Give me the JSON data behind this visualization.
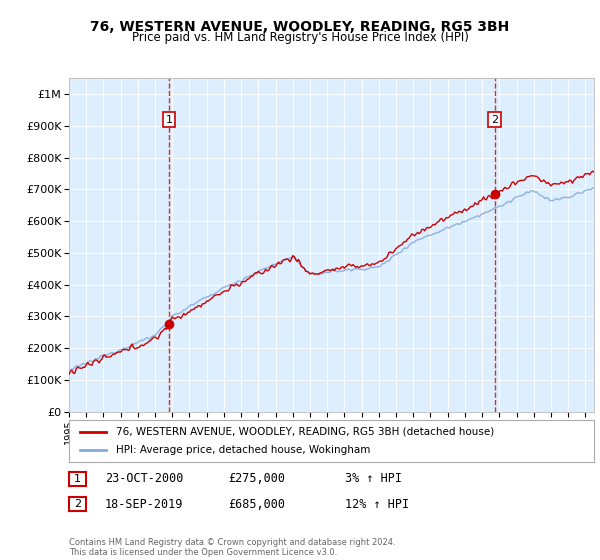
{
  "title": "76, WESTERN AVENUE, WOODLEY, READING, RG5 3BH",
  "subtitle": "Price paid vs. HM Land Registry's House Price Index (HPI)",
  "background_color": "#ffffff",
  "plot_bg_color": "#ddeeff",
  "grid_color": "#ffffff",
  "ylim": [
    0,
    1050000
  ],
  "yticks": [
    0,
    100000,
    200000,
    300000,
    400000,
    500000,
    600000,
    700000,
    800000,
    900000,
    1000000
  ],
  "ytick_labels": [
    "£0",
    "£100K",
    "£200K",
    "£300K",
    "£400K",
    "£500K",
    "£600K",
    "£700K",
    "£800K",
    "£900K",
    "£1M"
  ],
  "xlim_start": 1995.0,
  "xlim_end": 2025.5,
  "sale1_x": 2000.81,
  "sale1_y": 275000,
  "sale2_x": 2019.72,
  "sale2_y": 685000,
  "legend_line1": "76, WESTERN AVENUE, WOODLEY, READING, RG5 3BH (detached house)",
  "legend_line2": "HPI: Average price, detached house, Wokingham",
  "annotation1_label": "1",
  "annotation1_date": "23-OCT-2000",
  "annotation1_price": "£275,000",
  "annotation1_hpi": "3% ↑ HPI",
  "annotation2_label": "2",
  "annotation2_date": "18-SEP-2019",
  "annotation2_price": "£685,000",
  "annotation2_hpi": "12% ↑ HPI",
  "footer": "Contains HM Land Registry data © Crown copyright and database right 2024.\nThis data is licensed under the Open Government Licence v3.0.",
  "red_color": "#cc0000",
  "blue_color": "#88aadd",
  "marker_color": "#cc0000"
}
